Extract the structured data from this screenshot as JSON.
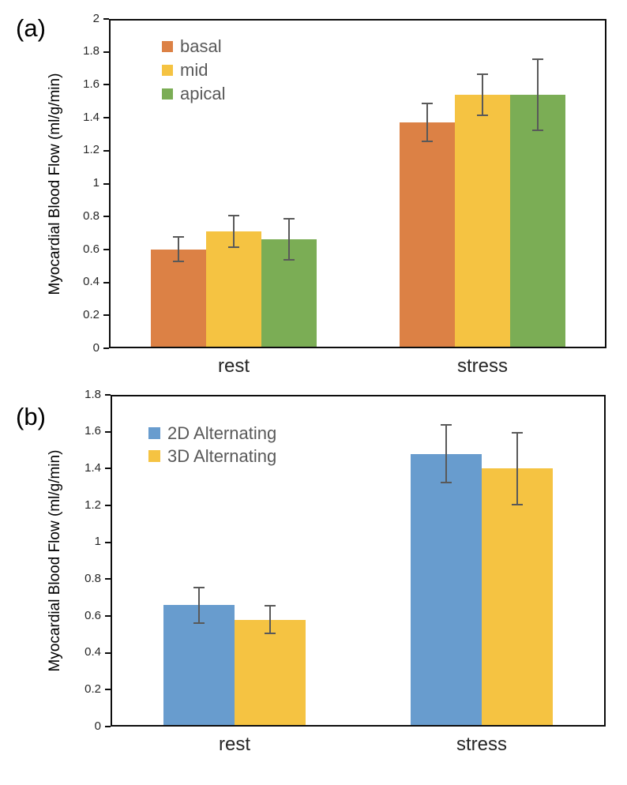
{
  "chart_data": [
    {
      "type": "bar",
      "panel_label": "(a)",
      "ylabel": "Myocardial Blood Flow (ml/g/min)",
      "xlabel": "",
      "categories": [
        "rest",
        "stress"
      ],
      "series": [
        {
          "name": "basal",
          "color": "#DC8145",
          "values": [
            0.6,
            1.37
          ],
          "errors": [
            0.08,
            0.12
          ]
        },
        {
          "name": "mid",
          "color": "#F5C342",
          "values": [
            0.71,
            1.54
          ],
          "errors": [
            0.1,
            0.13
          ]
        },
        {
          "name": "apical",
          "color": "#7BAD55",
          "values": [
            0.66,
            1.54
          ],
          "errors": [
            0.13,
            0.22
          ]
        }
      ],
      "ylim": [
        0,
        2
      ],
      "ytick_step": 0.2,
      "yticks": [
        "0",
        "0.2",
        "0.4",
        "0.6",
        "0.8",
        "1",
        "1.2",
        "1.4",
        "1.6",
        "1.8",
        "2"
      ],
      "grid": false,
      "legend_position": "top-left-inside",
      "error_bar_color": "#595959"
    },
    {
      "type": "bar",
      "panel_label": "(b)",
      "ylabel": "Myocardial Blood Flow (ml/g/min)",
      "xlabel": "",
      "categories": [
        "rest",
        "stress"
      ],
      "series": [
        {
          "name": "2D Alternating",
          "color": "#689CCE",
          "values": [
            0.66,
            1.48
          ],
          "errors": [
            0.1,
            0.16
          ]
        },
        {
          "name": "3D Alternating",
          "color": "#F5C342",
          "values": [
            0.58,
            1.4
          ],
          "errors": [
            0.08,
            0.2
          ]
        }
      ],
      "ylim": [
        0,
        1.8
      ],
      "ytick_step": 0.2,
      "yticks": [
        "0",
        "0.2",
        "0.4",
        "0.6",
        "0.8",
        "1",
        "1.2",
        "1.4",
        "1.6",
        "1.8"
      ],
      "grid": false,
      "legend_position": "top-left-inside",
      "error_bar_color": "#595959"
    }
  ]
}
